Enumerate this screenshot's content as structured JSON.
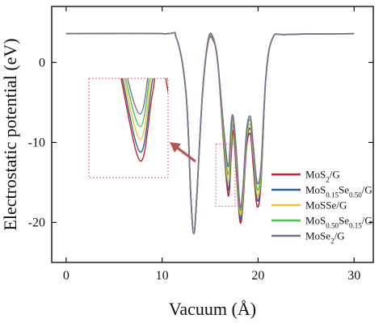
{
  "chart_data": {
    "type": "line",
    "title": "",
    "xlabel": "Vacuum (Å)",
    "ylabel": "Electrostatic potential (eV)",
    "xlim": [
      -1.5,
      32
    ],
    "ylim": [
      -25,
      7
    ],
    "xticks": [
      0,
      10,
      20,
      30
    ],
    "yticks": [
      0,
      -10,
      -20
    ],
    "xtick_labels": [
      "0",
      "10",
      "20",
      "30"
    ],
    "ytick_labels": [
      "0",
      "-10",
      "-20"
    ],
    "grid": false,
    "legend_position": "bottom-right",
    "inset": {
      "type": "zoom",
      "description_box": "dashed",
      "arrow_color": "#b85450"
    },
    "series": [
      {
        "name": "MoS2/G",
        "legend": {
          "base": "MoS",
          "sub1": "2",
          "mid": "",
          "sub2": "",
          "tail": "/G"
        },
        "color": "#c0282d",
        "x": [
          0,
          10,
          11.5,
          12.5,
          13.0,
          13.3,
          13.6,
          14.2,
          14.8,
          15.3,
          15.8,
          16.4,
          16.9,
          17.2,
          17.4,
          17.7,
          18.1,
          18.4,
          18.8,
          19.2,
          19.5,
          19.9,
          20.3,
          20.8,
          21.5,
          23,
          30
        ],
        "y": [
          3.6,
          3.6,
          3.0,
          -4.0,
          -17.0,
          -21.4,
          -17.0,
          -4.0,
          2.5,
          2.8,
          0.0,
          -10.0,
          -16.7,
          -11.5,
          -8.5,
          -13.0,
          -19.8,
          -18.0,
          -10.5,
          -9.0,
          -13.0,
          -18.0,
          -15.0,
          -2.0,
          3.0,
          3.5,
          3.6
        ]
      },
      {
        "name": "MoS0.15Se0.50/G",
        "legend": {
          "base": "MoS",
          "sub1": "0.15",
          "mid": "Se",
          "sub2": "0.50",
          "tail": "/G"
        },
        "color": "#2e5f9e",
        "x": [
          0,
          10,
          11.5,
          12.5,
          13.0,
          13.3,
          13.6,
          14.2,
          14.8,
          15.3,
          15.8,
          16.4,
          16.9,
          17.2,
          17.4,
          17.7,
          18.1,
          18.4,
          18.8,
          19.2,
          19.5,
          19.9,
          20.3,
          20.8,
          21.5,
          23,
          30
        ],
        "y": [
          3.6,
          3.6,
          3.0,
          -4.0,
          -17.0,
          -21.4,
          -17.0,
          -4.0,
          2.6,
          2.9,
          0.0,
          -9.5,
          -16.0,
          -10.5,
          -7.5,
          -12.0,
          -19.3,
          -17.5,
          -10.0,
          -8.3,
          -12.0,
          -17.2,
          -14.5,
          -2.0,
          3.0,
          3.5,
          3.6
        ]
      },
      {
        "name": "MoSSe/G",
        "legend": {
          "base": "MoSSe",
          "sub1": "",
          "mid": "",
          "sub2": "",
          "tail": "/G"
        },
        "color": "#f2c12e",
        "x": [
          0,
          10,
          11.5,
          12.5,
          13.0,
          13.3,
          13.6,
          14.2,
          14.8,
          15.3,
          15.8,
          16.4,
          16.9,
          17.2,
          17.4,
          17.7,
          18.1,
          18.4,
          18.8,
          19.2,
          19.5,
          19.9,
          20.3,
          20.8,
          21.5,
          23,
          30
        ],
        "y": [
          3.6,
          3.6,
          3.0,
          -4.0,
          -17.0,
          -21.4,
          -17.0,
          -4.0,
          2.7,
          3.0,
          0.0,
          -9.0,
          -15.0,
          -9.5,
          -7.2,
          -11.5,
          -18.7,
          -17.0,
          -9.5,
          -7.8,
          -11.5,
          -16.5,
          -14.0,
          -2.0,
          3.0,
          3.5,
          3.6
        ]
      },
      {
        "name": "MoS0.50Se0.15/G",
        "legend": {
          "base": "MoS",
          "sub1": "0.50",
          "mid": "Se",
          "sub2": "0.15",
          "tail": "/G"
        },
        "color": "#4cbe58",
        "x": [
          0,
          10,
          11.5,
          12.5,
          13.0,
          13.3,
          13.6,
          14.2,
          14.8,
          15.3,
          15.8,
          16.4,
          16.9,
          17.2,
          17.4,
          17.7,
          18.1,
          18.4,
          18.8,
          19.2,
          19.5,
          19.9,
          20.3,
          20.8,
          21.5,
          23,
          30
        ],
        "y": [
          3.6,
          3.6,
          3.0,
          -4.0,
          -17.0,
          -21.4,
          -17.0,
          -4.0,
          2.8,
          3.1,
          0.0,
          -8.5,
          -14.0,
          -8.5,
          -7.0,
          -11.0,
          -18.2,
          -16.5,
          -9.0,
          -7.2,
          -11.0,
          -15.8,
          -13.5,
          -2.0,
          3.0,
          3.5,
          3.6
        ]
      },
      {
        "name": "MoSe2/G",
        "legend": {
          "base": "MoSe",
          "sub1": "2",
          "mid": "",
          "sub2": "",
          "tail": "/G"
        },
        "color": "#7d6f91",
        "x": [
          0,
          10,
          11.5,
          12.5,
          13.0,
          13.3,
          13.6,
          14.2,
          14.8,
          15.3,
          15.8,
          16.4,
          16.9,
          17.2,
          17.4,
          17.7,
          18.1,
          18.4,
          18.8,
          19.2,
          19.5,
          19.9,
          20.3,
          20.8,
          21.5,
          23,
          30
        ],
        "y": [
          3.6,
          3.6,
          3.0,
          -4.0,
          -17.0,
          -21.4,
          -17.0,
          -4.0,
          2.9,
          3.2,
          0.0,
          -8.0,
          -13.0,
          -7.5,
          -6.8,
          -10.5,
          -17.8,
          -16.0,
          -8.5,
          -6.8,
          -10.5,
          -15.0,
          -13.0,
          -2.0,
          3.0,
          3.5,
          3.6
        ]
      }
    ]
  }
}
